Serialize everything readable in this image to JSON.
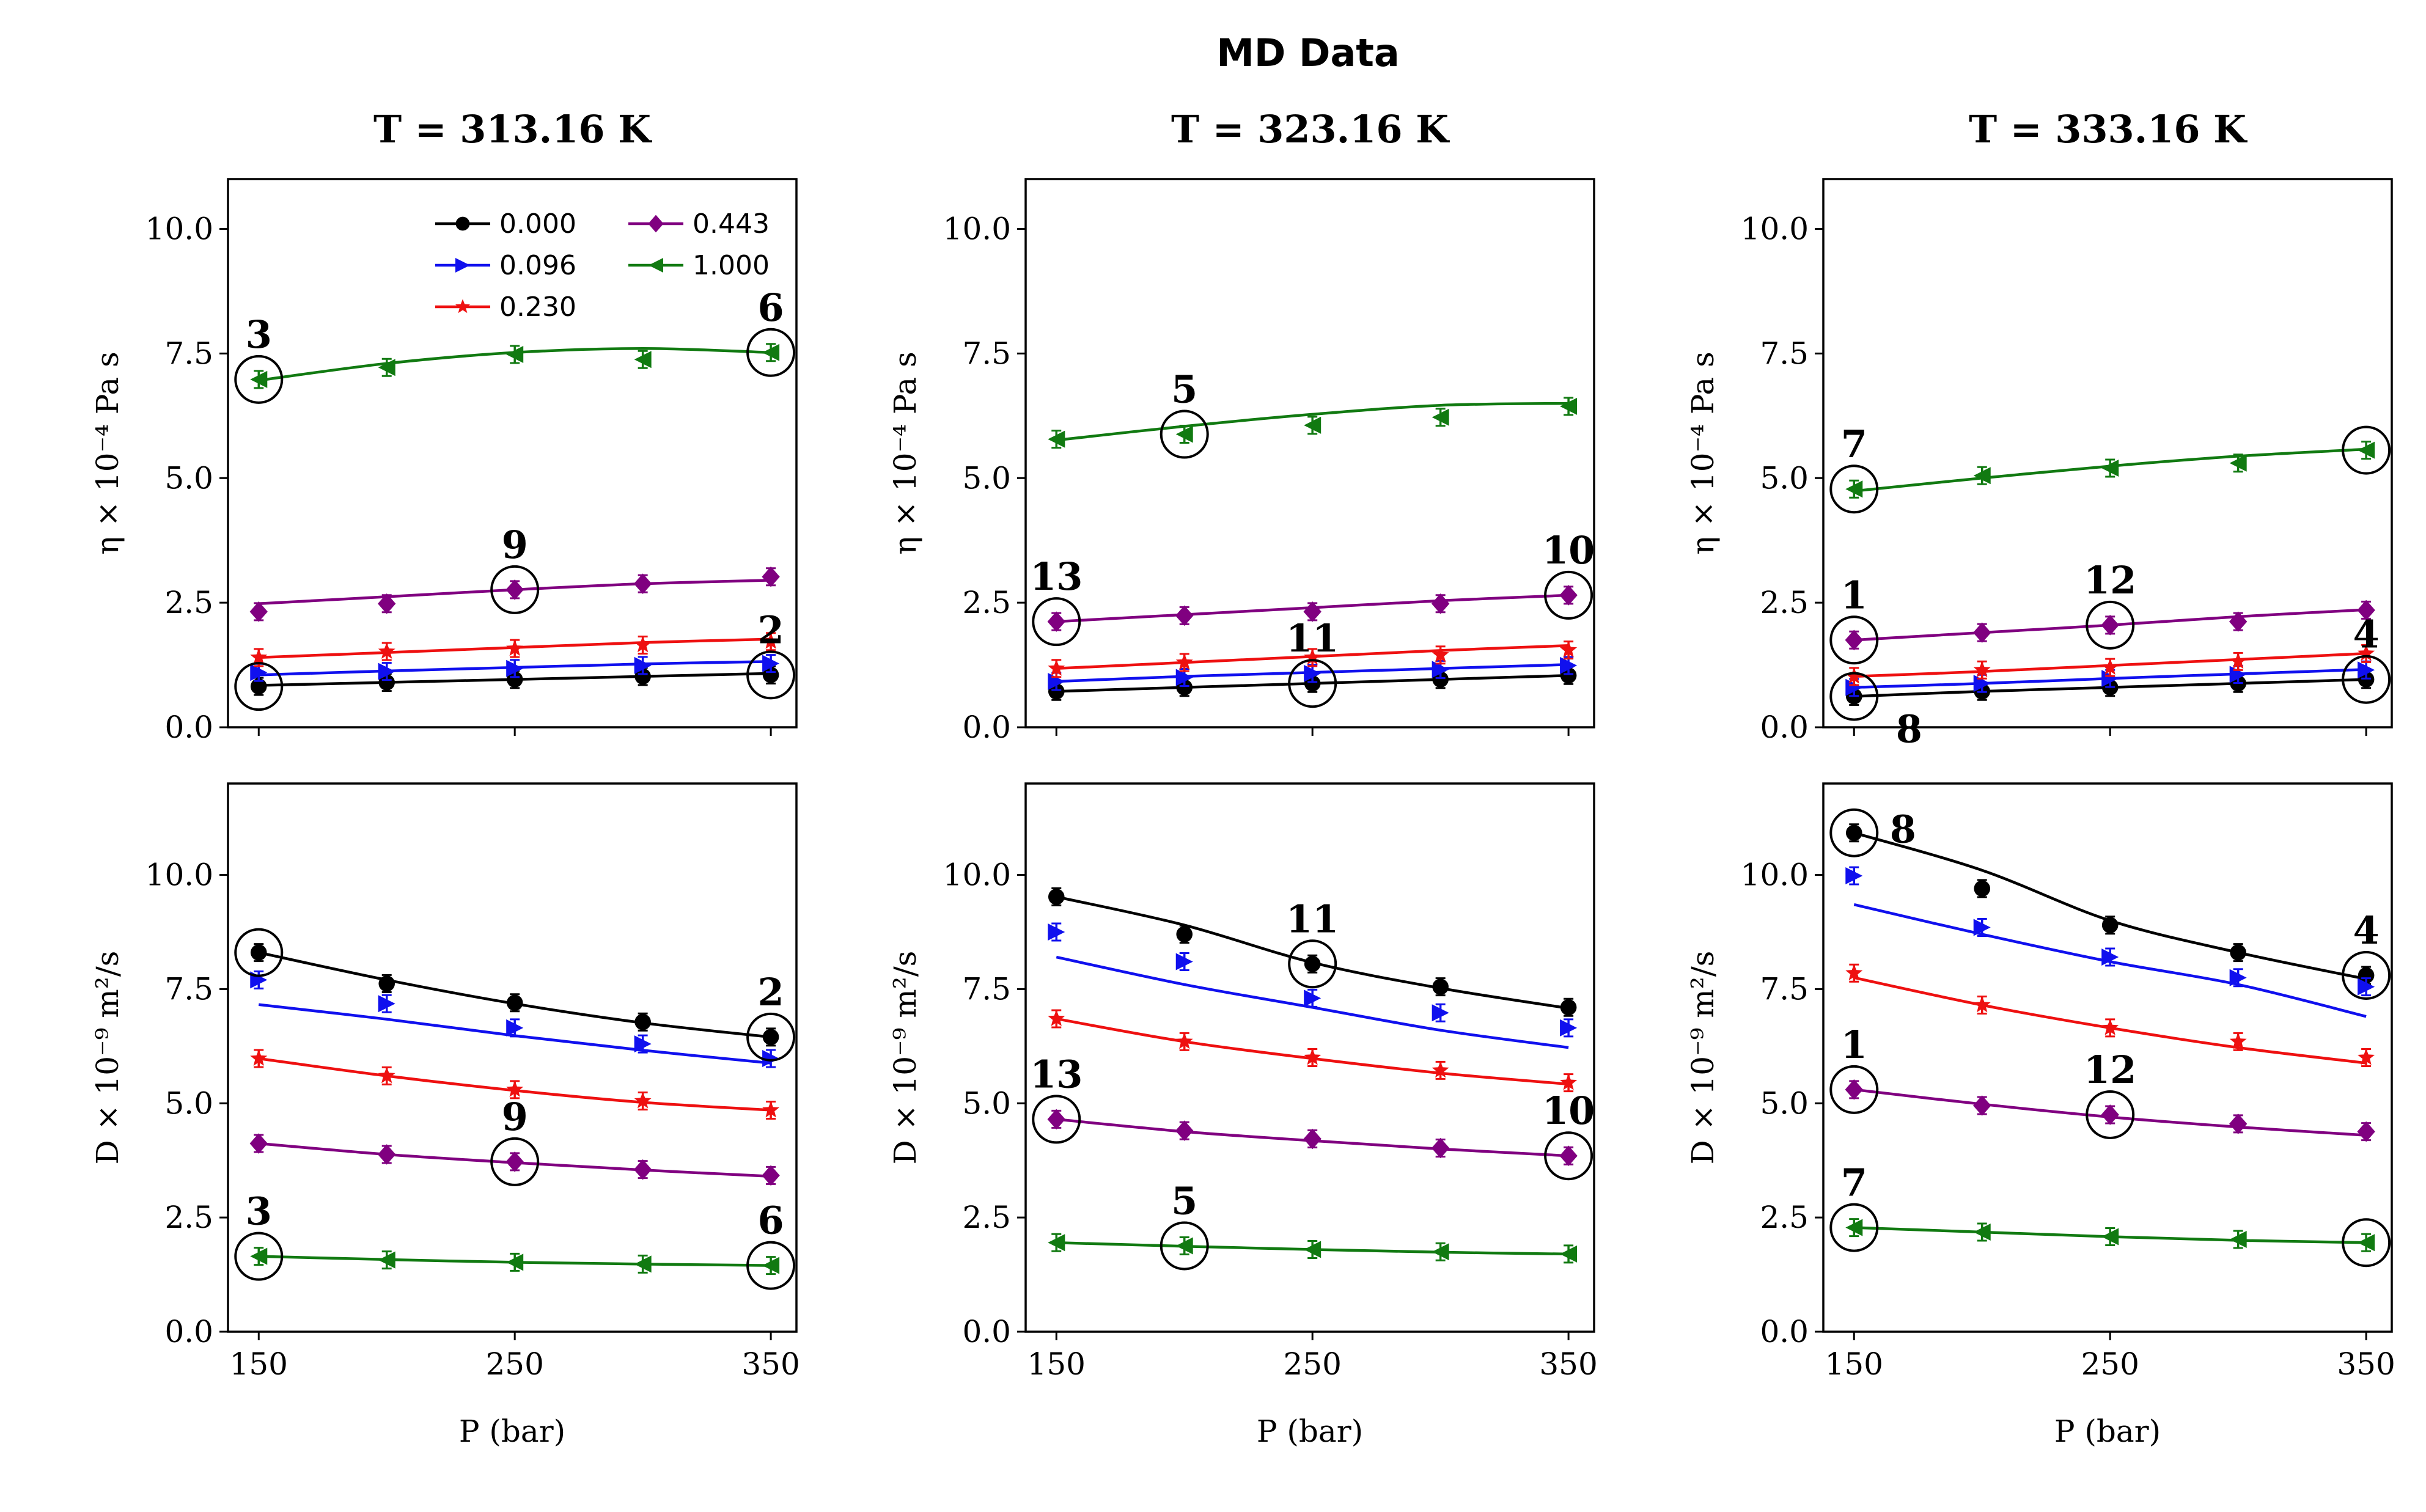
{
  "figure": {
    "title": "MD Data"
  },
  "chart_data": {
    "type": "line",
    "title": "MD Data",
    "legend": {
      "placement": "upper-right of top-left panel",
      "entries": [
        "0.000",
        "0.096",
        "0.230",
        "0.443",
        "1.000"
      ]
    },
    "series_styles": [
      {
        "name": "0.000",
        "color": "#000000",
        "marker": "circle"
      },
      {
        "name": "0.096",
        "color": "#1010ee",
        "marker": "triangle-right"
      },
      {
        "name": "0.230",
        "color": "#ee1010",
        "marker": "star"
      },
      {
        "name": "0.443",
        "color": "#800080",
        "marker": "diamond"
      },
      {
        "name": "1.000",
        "color": "#117a11",
        "marker": "triangle-left"
      }
    ],
    "x": [
      150,
      200,
      250,
      300,
      350
    ],
    "xlabel": "P (bar)",
    "xlim": [
      138,
      360
    ],
    "xticks": [
      "150",
      "250",
      "350"
    ],
    "panels": [
      {
        "id": "eta-313",
        "row": 0,
        "col": 0,
        "title": "T = 313.16 K",
        "ylabel": "η × 10⁻⁴ Pa s",
        "ylim": [
          0,
          11
        ],
        "yticks": [
          "0.0",
          "2.5",
          "5.0",
          "7.5",
          "10.0"
        ],
        "series": [
          {
            "name": "0.000",
            "values": [
              0.82,
              0.9,
              0.96,
              1.02,
              1.05
            ],
            "fit": [
              0.84,
              0.9,
              0.96,
              1.02,
              1.08
            ]
          },
          {
            "name": "0.096",
            "values": [
              1.1,
              1.12,
              1.18,
              1.24,
              1.28
            ],
            "fit": [
              1.05,
              1.13,
              1.2,
              1.27,
              1.32
            ]
          },
          {
            "name": "0.230",
            "values": [
              1.4,
              1.52,
              1.58,
              1.65,
              1.72
            ],
            "fit": [
              1.4,
              1.5,
              1.6,
              1.7,
              1.77
            ]
          },
          {
            "name": "0.443",
            "values": [
              2.32,
              2.48,
              2.76,
              2.88,
              3.02
            ],
            "fit": [
              2.48,
              2.62,
              2.76,
              2.88,
              2.95
            ]
          },
          {
            "name": "1.000",
            "values": [
              6.98,
              7.22,
              7.48,
              7.38,
              7.52
            ],
            "fit": [
              6.96,
              7.3,
              7.52,
              7.6,
              7.52
            ]
          }
        ],
        "annotations": [
          {
            "label": "3",
            "x": 150,
            "y": 6.98
          },
          {
            "label": "6",
            "x": 350,
            "y": 7.52
          },
          {
            "label": "9",
            "x": 250,
            "y": 2.76
          },
          {
            "label": "2",
            "x": 350,
            "y": 1.05
          }
        ],
        "extra_circles": [
          {
            "x": 150,
            "y": 0.82
          }
        ]
      },
      {
        "id": "eta-323",
        "row": 0,
        "col": 1,
        "title": "T = 323.16 K",
        "ylabel": "η × 10⁻⁴ Pa s",
        "ylim": [
          0,
          11
        ],
        "yticks": [
          "0.0",
          "2.5",
          "5.0",
          "7.5",
          "10.0"
        ],
        "series": [
          {
            "name": "0.000",
            "values": [
              0.72,
              0.8,
              0.88,
              0.96,
              1.04
            ],
            "fit": [
              0.72,
              0.8,
              0.88,
              0.96,
              1.04
            ]
          },
          {
            "name": "0.096",
            "values": [
              0.92,
              1.0,
              1.08,
              1.16,
              1.24
            ],
            "fit": [
              0.92,
              1.02,
              1.1,
              1.18,
              1.26
            ]
          },
          {
            "name": "0.230",
            "values": [
              1.18,
              1.3,
              1.4,
              1.45,
              1.55
            ],
            "fit": [
              1.18,
              1.3,
              1.42,
              1.54,
              1.64
            ]
          },
          {
            "name": "0.443",
            "values": [
              2.12,
              2.24,
              2.32,
              2.48,
              2.65
            ],
            "fit": [
              2.12,
              2.26,
              2.4,
              2.54,
              2.65
            ]
          },
          {
            "name": "1.000",
            "values": [
              5.78,
              5.88,
              6.06,
              6.22,
              6.44
            ],
            "fit": [
              5.76,
              6.04,
              6.28,
              6.46,
              6.5
            ]
          }
        ],
        "annotations": [
          {
            "label": "5",
            "x": 200,
            "y": 5.88
          },
          {
            "label": "13",
            "x": 150,
            "y": 2.12
          },
          {
            "label": "10",
            "x": 350,
            "y": 2.65
          },
          {
            "label": "11",
            "x": 250,
            "y": 0.88
          }
        ],
        "extra_circles": []
      },
      {
        "id": "eta-333",
        "row": 0,
        "col": 2,
        "title": "T = 333.16 K",
        "ylabel": "η × 10⁻⁴ Pa s",
        "ylim": [
          0,
          11
        ],
        "yticks": [
          "0.0",
          "2.5",
          "5.0",
          "7.5",
          "10.0"
        ],
        "series": [
          {
            "name": "0.000",
            "values": [
              0.62,
              0.72,
              0.8,
              0.88,
              0.96
            ],
            "fit": [
              0.62,
              0.72,
              0.8,
              0.88,
              0.96
            ]
          },
          {
            "name": "0.096",
            "values": [
              0.8,
              0.88,
              0.98,
              1.06,
              1.15
            ],
            "fit": [
              0.8,
              0.88,
              0.98,
              1.07,
              1.16
            ]
          },
          {
            "name": "0.230",
            "values": [
              1.02,
              1.15,
              1.2,
              1.32,
              1.48
            ],
            "fit": [
              1.02,
              1.12,
              1.24,
              1.36,
              1.48
            ]
          },
          {
            "name": "0.443",
            "values": [
              1.75,
              1.9,
              2.05,
              2.12,
              2.35
            ],
            "fit": [
              1.75,
              1.9,
              2.05,
              2.22,
              2.36
            ]
          },
          {
            "name": "1.000",
            "values": [
              4.78,
              5.05,
              5.2,
              5.3,
              5.56
            ],
            "fit": [
              4.74,
              5.0,
              5.24,
              5.44,
              5.58
            ]
          }
        ],
        "annotations": [
          {
            "label": "7",
            "x": 150,
            "y": 4.78
          },
          {
            "label": "1",
            "x": 150,
            "y": 1.75
          },
          {
            "label": "8",
            "x": 150,
            "y": 0.62
          },
          {
            "label": "12",
            "x": 250,
            "y": 2.05
          },
          {
            "label": "4",
            "x": 350,
            "y": 0.96
          }
        ],
        "extra_circles": [
          {
            "x": 350,
            "y": 5.56
          }
        ]
      },
      {
        "id": "d-313",
        "row": 1,
        "col": 0,
        "ylabel": "D × 10⁻⁹ m²/s",
        "ylim": [
          0,
          12
        ],
        "yticks": [
          "0.0",
          "2.5",
          "5.0",
          "7.5",
          "10.0"
        ],
        "series": [
          {
            "name": "0.000",
            "values": [
              8.3,
              7.62,
              7.2,
              6.78,
              6.45
            ],
            "fit": [
              8.3,
              7.7,
              7.18,
              6.76,
              6.45
            ]
          },
          {
            "name": "0.096",
            "values": [
              7.7,
              7.18,
              6.65,
              6.3,
              5.98
            ],
            "fit": [
              7.16,
              6.84,
              6.48,
              6.16,
              5.88
            ]
          },
          {
            "name": "0.230",
            "values": [
              5.98,
              5.6,
              5.3,
              5.05,
              4.85
            ],
            "fit": [
              5.98,
              5.6,
              5.28,
              5.02,
              4.85
            ]
          },
          {
            "name": "0.443",
            "values": [
              4.12,
              3.88,
              3.72,
              3.55,
              3.42
            ],
            "fit": [
              4.12,
              3.88,
              3.7,
              3.54,
              3.4
            ]
          },
          {
            "name": "1.000",
            "values": [
              1.65,
              1.57,
              1.52,
              1.48,
              1.45
            ],
            "fit": [
              1.65,
              1.58,
              1.52,
              1.48,
              1.45
            ]
          }
        ],
        "annotations": [
          {
            "label": "3",
            "x": 150,
            "y": 1.65
          },
          {
            "label": "2",
            "x": 350,
            "y": 6.45
          },
          {
            "label": "9",
            "x": 250,
            "y": 3.72
          },
          {
            "label": "6",
            "x": 350,
            "y": 1.45
          }
        ],
        "extra_circles": [
          {
            "x": 150,
            "y": 8.3
          }
        ]
      },
      {
        "id": "d-323",
        "row": 1,
        "col": 1,
        "ylabel": "D × 10⁻⁹ m²/s",
        "ylim": [
          0,
          12
        ],
        "yticks": [
          "0.0",
          "2.5",
          "5.0",
          "7.5",
          "10.0"
        ],
        "series": [
          {
            "name": "0.000",
            "values": [
              9.52,
              8.7,
              8.05,
              7.55,
              7.1
            ],
            "fit": [
              9.52,
              8.9,
              8.08,
              7.52,
              7.08
            ]
          },
          {
            "name": "0.096",
            "values": [
              8.75,
              8.1,
              7.3,
              6.98,
              6.65
            ],
            "fit": [
              8.2,
              7.6,
              7.1,
              6.6,
              6.22
            ]
          },
          {
            "name": "0.230",
            "values": [
              6.85,
              6.35,
              6.0,
              5.72,
              5.45
            ],
            "fit": [
              6.85,
              6.35,
              5.98,
              5.66,
              5.42
            ]
          },
          {
            "name": "0.443",
            "values": [
              4.65,
              4.4,
              4.22,
              4.02,
              3.85
            ],
            "fit": [
              4.65,
              4.38,
              4.18,
              4.0,
              3.85
            ]
          },
          {
            "name": "1.000",
            "values": [
              1.95,
              1.88,
              1.8,
              1.75,
              1.7
            ],
            "fit": [
              1.95,
              1.87,
              1.8,
              1.74,
              1.7
            ]
          }
        ],
        "annotations": [
          {
            "label": "13",
            "x": 150,
            "y": 4.65
          },
          {
            "label": "11",
            "x": 250,
            "y": 8.05
          },
          {
            "label": "10",
            "x": 350,
            "y": 3.85
          },
          {
            "label": "5",
            "x": 200,
            "y": 1.88
          }
        ],
        "extra_circles": []
      },
      {
        "id": "d-333",
        "row": 1,
        "col": 2,
        "ylabel": "D × 10⁻⁹ m²/s",
        "ylim": [
          0,
          12
        ],
        "yticks": [
          "0.0",
          "2.5",
          "5.0",
          "7.5",
          "10.0"
        ],
        "series": [
          {
            "name": "0.000",
            "values": [
              10.92,
              9.7,
              8.9,
              8.3,
              7.8
            ],
            "fit": [
              10.92,
              10.1,
              9.0,
              8.3,
              7.72
            ]
          },
          {
            "name": "0.096",
            "values": [
              9.98,
              8.85,
              8.2,
              7.75,
              7.55
            ],
            "fit": [
              9.35,
              8.7,
              8.1,
              7.6,
              6.9
            ]
          },
          {
            "name": "0.230",
            "values": [
              7.85,
              7.15,
              6.65,
              6.35,
              6.0
            ],
            "fit": [
              7.75,
              7.15,
              6.65,
              6.22,
              5.88
            ]
          },
          {
            "name": "0.443",
            "values": [
              5.3,
              4.95,
              4.75,
              4.55,
              4.38
            ],
            "fit": [
              5.3,
              4.98,
              4.7,
              4.48,
              4.3
            ]
          },
          {
            "name": "1.000",
            "values": [
              2.28,
              2.18,
              2.08,
              2.02,
              1.95
            ],
            "fit": [
              2.28,
              2.18,
              2.08,
              2.0,
              1.95
            ]
          }
        ],
        "annotations": [
          {
            "label": "8",
            "x": 150,
            "y": 10.92
          },
          {
            "label": "4",
            "x": 350,
            "y": 7.8
          },
          {
            "label": "1",
            "x": 150,
            "y": 5.3
          },
          {
            "label": "12",
            "x": 250,
            "y": 4.75
          },
          {
            "label": "7",
            "x": 150,
            "y": 2.28
          }
        ],
        "extra_circles": [
          {
            "x": 350,
            "y": 1.95
          }
        ]
      }
    ]
  }
}
